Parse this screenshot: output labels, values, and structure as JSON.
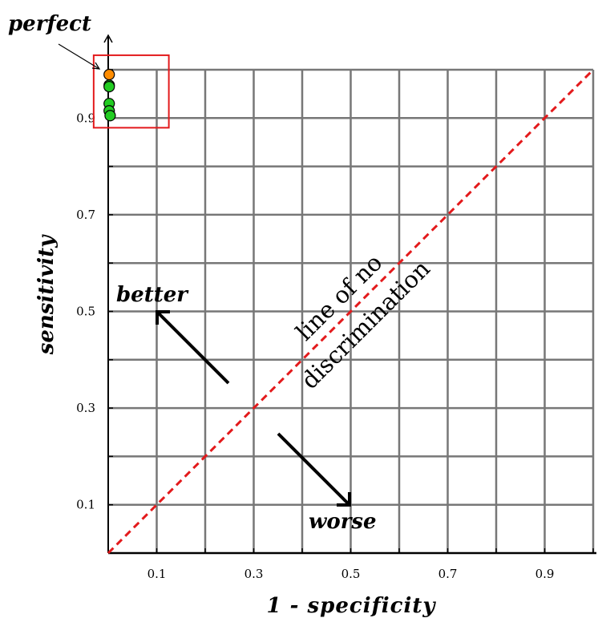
{
  "chart_data": {
    "type": "scatter",
    "xlabel": "1 - specificity",
    "ylabel": "sensitivity",
    "xlim": [
      0,
      1
    ],
    "ylim": [
      0,
      1
    ],
    "grid": true,
    "x_ticks": [
      "0.1",
      "0.3",
      "0.5",
      "0.7",
      "0.9"
    ],
    "y_ticks": [
      "0.1",
      "0.3",
      "0.5",
      "0.7",
      "0.9"
    ],
    "reference_line": {
      "from": [
        0,
        0
      ],
      "to": [
        1,
        1
      ],
      "label_line1": "line of no",
      "label_line2": "discrimination",
      "color": "#e31a1c"
    },
    "annotations": {
      "perfect": "perfect",
      "better": "better",
      "worse": "worse"
    },
    "highlight_box": {
      "x": [
        -0.03,
        0.125
      ],
      "y": [
        0.88,
        1.03
      ],
      "color": "#e31a1c"
    },
    "series": [
      {
        "color": "#ff8c00",
        "points": [
          {
            "x": 0.002,
            "y": 0.99
          }
        ]
      },
      {
        "color": "#22cc22",
        "points": [
          {
            "x": 0.002,
            "y": 0.968
          },
          {
            "x": 0.002,
            "y": 0.965
          },
          {
            "x": 0.002,
            "y": 0.93
          },
          {
            "x": 0.002,
            "y": 0.915
          },
          {
            "x": 0.004,
            "y": 0.905
          }
        ]
      }
    ]
  }
}
